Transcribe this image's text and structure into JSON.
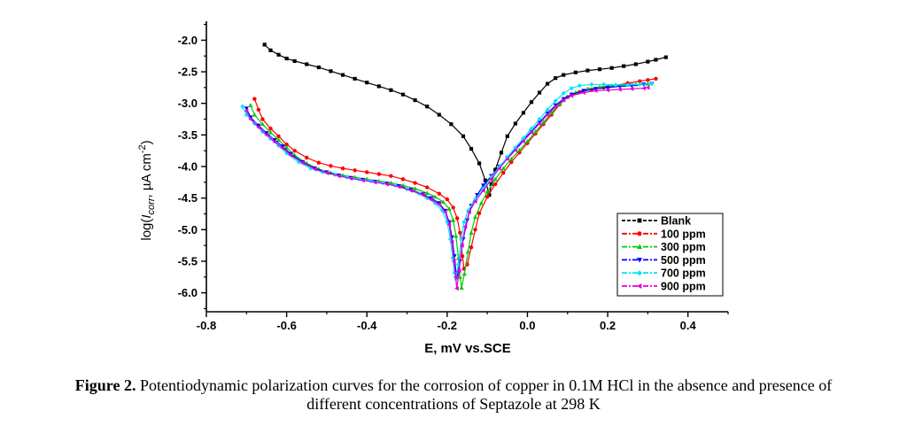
{
  "chart_data": {
    "type": "line",
    "title": "",
    "xlabel": "E, mV vs.SCE",
    "ylabel": "log(I_corr, µA cm^-2)",
    "ylabel_parts": {
      "pre": "log(",
      "sym": "I",
      "sub": "corr",
      "post": ", ",
      "mu": "µ",
      "unit": "A cm",
      "exp": "-2",
      "close": ")"
    },
    "xlim": [
      -0.8,
      0.5
    ],
    "ylim": [
      -6.3,
      -1.7
    ],
    "xticks": [
      -0.8,
      -0.6,
      -0.4,
      -0.2,
      0.0,
      0.2,
      0.4
    ],
    "xtick_labels": [
      "-0.8",
      "-0.6",
      "-0.4",
      "-0.2",
      "0.0",
      "0.2",
      "0.4"
    ],
    "yticks": [
      -2.0,
      -2.5,
      -3.0,
      -3.5,
      -4.0,
      -4.5,
      -5.0,
      -5.5,
      -6.0
    ],
    "ytick_labels": [
      "-2.0",
      "-2.5",
      "-3.0",
      "-3.5",
      "-4.0",
      "-4.5",
      "-5.0",
      "-5.5",
      "-6.0"
    ],
    "legend_position": "lower-right",
    "series": [
      {
        "name": "Blank",
        "color": "#000000",
        "marker": "square",
        "points": [
          [
            -0.655,
            -2.07
          ],
          [
            -0.64,
            -2.16
          ],
          [
            -0.62,
            -2.23
          ],
          [
            -0.6,
            -2.29
          ],
          [
            -0.58,
            -2.33
          ],
          [
            -0.55,
            -2.38
          ],
          [
            -0.52,
            -2.43
          ],
          [
            -0.49,
            -2.49
          ],
          [
            -0.46,
            -2.55
          ],
          [
            -0.43,
            -2.61
          ],
          [
            -0.4,
            -2.67
          ],
          [
            -0.37,
            -2.73
          ],
          [
            -0.34,
            -2.79
          ],
          [
            -0.31,
            -2.86
          ],
          [
            -0.28,
            -2.95
          ],
          [
            -0.25,
            -3.05
          ],
          [
            -0.22,
            -3.18
          ],
          [
            -0.19,
            -3.33
          ],
          [
            -0.16,
            -3.52
          ],
          [
            -0.14,
            -3.72
          ],
          [
            -0.12,
            -3.95
          ],
          [
            -0.105,
            -4.22
          ],
          [
            -0.095,
            -4.45
          ],
          [
            -0.09,
            -4.28
          ],
          [
            -0.08,
            -4.05
          ],
          [
            -0.065,
            -3.78
          ],
          [
            -0.05,
            -3.52
          ],
          [
            -0.03,
            -3.32
          ],
          [
            -0.01,
            -3.15
          ],
          [
            0.01,
            -2.98
          ],
          [
            0.03,
            -2.83
          ],
          [
            0.05,
            -2.69
          ],
          [
            0.07,
            -2.6
          ],
          [
            0.09,
            -2.55
          ],
          [
            0.12,
            -2.51
          ],
          [
            0.15,
            -2.48
          ],
          [
            0.18,
            -2.46
          ],
          [
            0.21,
            -2.44
          ],
          [
            0.24,
            -2.41
          ],
          [
            0.27,
            -2.38
          ],
          [
            0.3,
            -2.34
          ],
          [
            0.32,
            -2.31
          ],
          [
            0.345,
            -2.27
          ]
        ]
      },
      {
        "name": "100 ppm",
        "color": "#ff0000",
        "marker": "circle",
        "points": [
          [
            -0.68,
            -2.93
          ],
          [
            -0.67,
            -3.1
          ],
          [
            -0.66,
            -3.25
          ],
          [
            -0.64,
            -3.4
          ],
          [
            -0.62,
            -3.52
          ],
          [
            -0.6,
            -3.65
          ],
          [
            -0.58,
            -3.75
          ],
          [
            -0.55,
            -3.86
          ],
          [
            -0.52,
            -3.94
          ],
          [
            -0.49,
            -3.99
          ],
          [
            -0.46,
            -4.03
          ],
          [
            -0.43,
            -4.06
          ],
          [
            -0.4,
            -4.09
          ],
          [
            -0.37,
            -4.12
          ],
          [
            -0.34,
            -4.15
          ],
          [
            -0.31,
            -4.2
          ],
          [
            -0.28,
            -4.26
          ],
          [
            -0.25,
            -4.33
          ],
          [
            -0.22,
            -4.43
          ],
          [
            -0.2,
            -4.52
          ],
          [
            -0.185,
            -4.65
          ],
          [
            -0.175,
            -4.82
          ],
          [
            -0.168,
            -5.05
          ],
          [
            -0.162,
            -5.42
          ],
          [
            -0.158,
            -5.62
          ],
          [
            -0.15,
            -5.55
          ],
          [
            -0.14,
            -5.28
          ],
          [
            -0.13,
            -5.0
          ],
          [
            -0.12,
            -4.74
          ],
          [
            -0.1,
            -4.48
          ],
          [
            -0.08,
            -4.28
          ],
          [
            -0.06,
            -4.1
          ],
          [
            -0.04,
            -3.93
          ],
          [
            -0.02,
            -3.78
          ],
          [
            0.0,
            -3.63
          ],
          [
            0.02,
            -3.48
          ],
          [
            0.04,
            -3.33
          ],
          [
            0.06,
            -3.18
          ],
          [
            0.08,
            -3.02
          ],
          [
            0.1,
            -2.9
          ],
          [
            0.13,
            -2.82
          ],
          [
            0.16,
            -2.78
          ],
          [
            0.19,
            -2.75
          ],
          [
            0.22,
            -2.72
          ],
          [
            0.25,
            -2.68
          ],
          [
            0.28,
            -2.65
          ],
          [
            0.3,
            -2.63
          ],
          [
            0.32,
            -2.61
          ]
        ]
      },
      {
        "name": "300 ppm",
        "color": "#00cc00",
        "marker": "triangle-up",
        "points": [
          [
            -0.69,
            -3.03
          ],
          [
            -0.68,
            -3.18
          ],
          [
            -0.66,
            -3.33
          ],
          [
            -0.64,
            -3.46
          ],
          [
            -0.62,
            -3.58
          ],
          [
            -0.6,
            -3.7
          ],
          [
            -0.58,
            -3.82
          ],
          [
            -0.55,
            -3.95
          ],
          [
            -0.52,
            -4.04
          ],
          [
            -0.49,
            -4.1
          ],
          [
            -0.46,
            -4.14
          ],
          [
            -0.43,
            -4.17
          ],
          [
            -0.4,
            -4.2
          ],
          [
            -0.37,
            -4.23
          ],
          [
            -0.34,
            -4.26
          ],
          [
            -0.31,
            -4.3
          ],
          [
            -0.28,
            -4.35
          ],
          [
            -0.25,
            -4.42
          ],
          [
            -0.23,
            -4.48
          ],
          [
            -0.21,
            -4.56
          ],
          [
            -0.195,
            -4.67
          ],
          [
            -0.185,
            -4.85
          ],
          [
            -0.178,
            -5.1
          ],
          [
            -0.172,
            -5.45
          ],
          [
            -0.168,
            -5.75
          ],
          [
            -0.164,
            -5.92
          ],
          [
            -0.157,
            -5.7
          ],
          [
            -0.148,
            -5.35
          ],
          [
            -0.14,
            -5.05
          ],
          [
            -0.13,
            -4.8
          ],
          [
            -0.115,
            -4.58
          ],
          [
            -0.1,
            -4.4
          ],
          [
            -0.08,
            -4.2
          ],
          [
            -0.06,
            -4.03
          ],
          [
            -0.04,
            -3.88
          ],
          [
            -0.02,
            -3.74
          ],
          [
            0.0,
            -3.6
          ],
          [
            0.02,
            -3.45
          ],
          [
            0.04,
            -3.3
          ],
          [
            0.06,
            -3.15
          ],
          [
            0.08,
            -3.01
          ],
          [
            0.1,
            -2.9
          ],
          [
            0.12,
            -2.83
          ],
          [
            0.15,
            -2.77
          ],
          [
            0.18,
            -2.74
          ],
          [
            0.21,
            -2.72
          ],
          [
            0.24,
            -2.71
          ],
          [
            0.27,
            -2.7
          ],
          [
            0.3,
            -2.69
          ]
        ]
      },
      {
        "name": "500 ppm",
        "color": "#0000ff",
        "marker": "triangle-down",
        "points": [
          [
            -0.7,
            -3.08
          ],
          [
            -0.69,
            -3.22
          ],
          [
            -0.67,
            -3.35
          ],
          [
            -0.65,
            -3.47
          ],
          [
            -0.63,
            -3.58
          ],
          [
            -0.61,
            -3.68
          ],
          [
            -0.59,
            -3.8
          ],
          [
            -0.56,
            -3.93
          ],
          [
            -0.53,
            -4.03
          ],
          [
            -0.5,
            -4.09
          ],
          [
            -0.47,
            -4.14
          ],
          [
            -0.44,
            -4.18
          ],
          [
            -0.41,
            -4.21
          ],
          [
            -0.38,
            -4.24
          ],
          [
            -0.35,
            -4.27
          ],
          [
            -0.32,
            -4.31
          ],
          [
            -0.29,
            -4.37
          ],
          [
            -0.26,
            -4.44
          ],
          [
            -0.24,
            -4.5
          ],
          [
            -0.22,
            -4.58
          ],
          [
            -0.205,
            -4.7
          ],
          [
            -0.195,
            -4.88
          ],
          [
            -0.188,
            -5.12
          ],
          [
            -0.182,
            -5.42
          ],
          [
            -0.178,
            -5.68
          ],
          [
            -0.174,
            -5.72
          ],
          [
            -0.168,
            -5.5
          ],
          [
            -0.16,
            -5.15
          ],
          [
            -0.15,
            -4.85
          ],
          [
            -0.14,
            -4.62
          ],
          [
            -0.125,
            -4.45
          ],
          [
            -0.11,
            -4.3
          ],
          [
            -0.09,
            -4.15
          ],
          [
            -0.07,
            -4.0
          ],
          [
            -0.05,
            -3.86
          ],
          [
            -0.03,
            -3.72
          ],
          [
            -0.01,
            -3.58
          ],
          [
            0.01,
            -3.44
          ],
          [
            0.03,
            -3.3
          ],
          [
            0.05,
            -3.16
          ],
          [
            0.07,
            -3.03
          ],
          [
            0.09,
            -2.93
          ],
          [
            0.11,
            -2.86
          ],
          [
            0.14,
            -2.8
          ],
          [
            0.17,
            -2.77
          ],
          [
            0.2,
            -2.75
          ],
          [
            0.23,
            -2.73
          ],
          [
            0.26,
            -2.72
          ],
          [
            0.29,
            -2.7
          ],
          [
            0.31,
            -2.69
          ]
        ]
      },
      {
        "name": "700 ppm",
        "color": "#00e5ff",
        "marker": "diamond",
        "points": [
          [
            -0.71,
            -3.05
          ],
          [
            -0.7,
            -3.18
          ],
          [
            -0.68,
            -3.32
          ],
          [
            -0.66,
            -3.45
          ],
          [
            -0.64,
            -3.56
          ],
          [
            -0.62,
            -3.67
          ],
          [
            -0.6,
            -3.79
          ],
          [
            -0.57,
            -3.93
          ],
          [
            -0.54,
            -4.03
          ],
          [
            -0.51,
            -4.09
          ],
          [
            -0.48,
            -4.13
          ],
          [
            -0.45,
            -4.17
          ],
          [
            -0.42,
            -4.2
          ],
          [
            -0.39,
            -4.23
          ],
          [
            -0.36,
            -4.26
          ],
          [
            -0.33,
            -4.3
          ],
          [
            -0.3,
            -4.36
          ],
          [
            -0.27,
            -4.43
          ],
          [
            -0.25,
            -4.5
          ],
          [
            -0.23,
            -4.58
          ],
          [
            -0.212,
            -4.7
          ],
          [
            -0.2,
            -4.88
          ],
          [
            -0.192,
            -5.15
          ],
          [
            -0.186,
            -5.45
          ],
          [
            -0.182,
            -5.68
          ],
          [
            -0.178,
            -5.78
          ],
          [
            -0.172,
            -5.55
          ],
          [
            -0.165,
            -5.15
          ],
          [
            -0.158,
            -4.88
          ],
          [
            -0.148,
            -4.7
          ],
          [
            -0.13,
            -4.52
          ],
          [
            -0.11,
            -4.35
          ],
          [
            -0.09,
            -4.17
          ],
          [
            -0.07,
            -4.01
          ],
          [
            -0.05,
            -3.85
          ],
          [
            -0.03,
            -3.7
          ],
          [
            -0.01,
            -3.55
          ],
          [
            0.01,
            -3.4
          ],
          [
            0.03,
            -3.25
          ],
          [
            0.05,
            -3.1
          ],
          [
            0.07,
            -2.96
          ],
          [
            0.09,
            -2.84
          ],
          [
            0.11,
            -2.76
          ],
          [
            0.13,
            -2.72
          ],
          [
            0.16,
            -2.7
          ],
          [
            0.19,
            -2.7
          ],
          [
            0.22,
            -2.71
          ],
          [
            0.25,
            -2.71
          ],
          [
            0.28,
            -2.7
          ],
          [
            0.31,
            -2.69
          ]
        ]
      },
      {
        "name": "900 ppm",
        "color": "#dd00dd",
        "marker": "triangle-left",
        "points": [
          [
            -0.7,
            -3.12
          ],
          [
            -0.69,
            -3.25
          ],
          [
            -0.67,
            -3.38
          ],
          [
            -0.65,
            -3.5
          ],
          [
            -0.63,
            -3.61
          ],
          [
            -0.61,
            -3.71
          ],
          [
            -0.59,
            -3.82
          ],
          [
            -0.56,
            -3.94
          ],
          [
            -0.53,
            -4.04
          ],
          [
            -0.5,
            -4.1
          ],
          [
            -0.47,
            -4.15
          ],
          [
            -0.44,
            -4.19
          ],
          [
            -0.41,
            -4.22
          ],
          [
            -0.38,
            -4.25
          ],
          [
            -0.35,
            -4.28
          ],
          [
            -0.32,
            -4.32
          ],
          [
            -0.29,
            -4.38
          ],
          [
            -0.26,
            -4.45
          ],
          [
            -0.24,
            -4.52
          ],
          [
            -0.22,
            -4.6
          ],
          [
            -0.205,
            -4.72
          ],
          [
            -0.195,
            -4.92
          ],
          [
            -0.188,
            -5.2
          ],
          [
            -0.183,
            -5.5
          ],
          [
            -0.179,
            -5.75
          ],
          [
            -0.176,
            -5.93
          ],
          [
            -0.17,
            -5.65
          ],
          [
            -0.163,
            -5.25
          ],
          [
            -0.155,
            -4.95
          ],
          [
            -0.145,
            -4.72
          ],
          [
            -0.13,
            -4.55
          ],
          [
            -0.11,
            -4.38
          ],
          [
            -0.09,
            -4.2
          ],
          [
            -0.07,
            -4.03
          ],
          [
            -0.05,
            -3.88
          ],
          [
            -0.03,
            -3.74
          ],
          [
            -0.01,
            -3.6
          ],
          [
            0.01,
            -3.46
          ],
          [
            0.03,
            -3.32
          ],
          [
            0.05,
            -3.18
          ],
          [
            0.07,
            -3.05
          ],
          [
            0.09,
            -2.95
          ],
          [
            0.11,
            -2.88
          ],
          [
            0.14,
            -2.83
          ],
          [
            0.17,
            -2.8
          ],
          [
            0.2,
            -2.79
          ],
          [
            0.23,
            -2.78
          ],
          [
            0.26,
            -2.77
          ],
          [
            0.29,
            -2.76
          ],
          [
            0.3,
            -2.75
          ]
        ]
      }
    ]
  },
  "caption": {
    "label": "Figure 2.",
    "line1": " Potentiodynamic polarization curves for the corrosion of copper in 0.1M HCl in the absence and presence of",
    "line2": "different concentrations of Septazole at 298 K"
  }
}
